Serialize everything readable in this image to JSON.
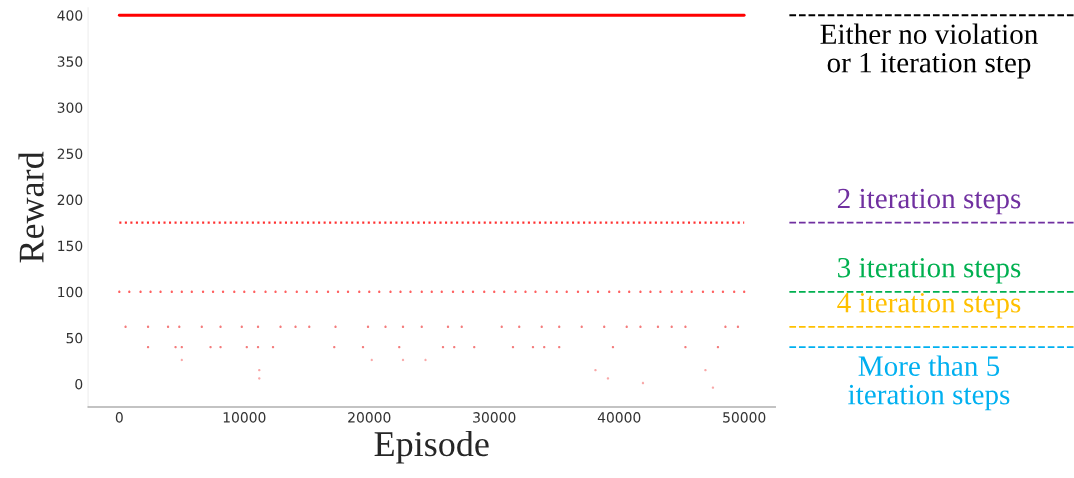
{
  "chart_data": {
    "type": "scatter",
    "xlabel": "Episode",
    "ylabel": "Reward",
    "xlim": [
      -2500,
      52500
    ],
    "ylim": [
      -25,
      408
    ],
    "xticks": [
      0,
      10000,
      20000,
      30000,
      40000,
      50000
    ],
    "yticks": [
      0,
      50,
      100,
      150,
      200,
      250,
      300,
      350,
      400
    ],
    "grid": false,
    "legend": false,
    "marker": "circle",
    "series": [
      {
        "type": "line",
        "marker": "none",
        "color": "#ff0000",
        "line_style": "solid",
        "x": [
          0,
          50000
        ],
        "values": [
          400,
          400
        ]
      },
      {
        "type": "line",
        "marker": "none",
        "color": "#ff3030",
        "line_style": "dotted",
        "x": [
          0,
          50000
        ],
        "values": [
          175,
          175
        ]
      },
      {
        "color": "#ff6060",
        "x": [
          0,
          800,
          1700,
          2500,
          3300,
          4200,
          5000,
          5800,
          6700,
          7500,
          8300,
          9200,
          10000,
          10800,
          11700,
          12500,
          13300,
          14200,
          15000,
          15800,
          16700,
          17500,
          18300,
          19200,
          20000,
          20800,
          21700,
          22500,
          23300,
          24200,
          25000,
          25800,
          26700,
          27500,
          28300,
          29200,
          30000,
          30800,
          31700,
          32500,
          33300,
          34200,
          35000,
          35800,
          36700,
          37500,
          38300,
          39200,
          40000,
          40800,
          41700,
          42500,
          43300,
          44200,
          45000,
          45800,
          46700,
          47500,
          48300,
          49200,
          50000
        ],
        "values": [
          100,
          100,
          100,
          100,
          100,
          100,
          100,
          100,
          100,
          100,
          100,
          100,
          100,
          100,
          100,
          100,
          100,
          100,
          100,
          100,
          100,
          100,
          100,
          100,
          100,
          100,
          100,
          100,
          100,
          100,
          100,
          100,
          100,
          100,
          100,
          100,
          100,
          100,
          100,
          100,
          100,
          100,
          100,
          100,
          100,
          100,
          100,
          100,
          100,
          100,
          100,
          100,
          100,
          100,
          100,
          100,
          100,
          100,
          100,
          100,
          100
        ]
      },
      {
        "color": "#f47c7c",
        "x": [
          500,
          2300,
          3900,
          4800,
          6600,
          8100,
          9800,
          11100,
          12900,
          14100,
          15200,
          17300,
          19900,
          21300,
          22700,
          24200,
          26300,
          27400,
          30600,
          32000,
          33800,
          35200,
          37000,
          38800,
          40600,
          41700,
          43100,
          44200,
          45300,
          48500,
          49500
        ],
        "values": [
          62,
          62,
          62,
          62,
          62,
          62,
          62,
          62,
          62,
          62,
          62,
          62,
          62,
          62,
          62,
          62,
          62,
          62,
          62,
          62,
          62,
          62,
          62,
          62,
          62,
          62,
          62,
          62,
          62,
          62,
          62
        ]
      },
      {
        "color": "#f47c7c",
        "x": [
          2300,
          4500,
          5000,
          7300,
          8100,
          10200,
          11100,
          12300,
          17200,
          19500,
          22400,
          25900,
          26800,
          28400,
          31500,
          33100,
          34000,
          35200,
          39500,
          45300,
          47900
        ],
        "values": [
          40,
          40,
          40,
          40,
          40,
          40,
          40,
          40,
          40,
          40,
          40,
          40,
          40,
          40,
          40,
          40,
          40,
          40,
          40,
          40,
          40
        ]
      },
      {
        "color": "#f8a8a8",
        "x": [
          5000,
          20200,
          22700,
          24500,
          11200,
          38100,
          46900,
          11200,
          39100,
          41900,
          47500
        ],
        "values": [
          26,
          26,
          26,
          26,
          15,
          15,
          15,
          6,
          6,
          1,
          -4
        ]
      }
    ],
    "ref_lines": [
      {
        "axis": "y",
        "value": 400,
        "label": "Either no violation\nor 1 iteration step",
        "color": "#000000",
        "line_style": "dashed"
      },
      {
        "axis": "y",
        "value": 175,
        "label": "2 iteration steps",
        "color": "#7030a0",
        "line_style": "dashed"
      },
      {
        "axis": "y",
        "value": 100,
        "label": "3 iteration steps",
        "color": "#00b050",
        "line_style": "dashed"
      },
      {
        "axis": "y",
        "value": 62,
        "label": "4 iteration steps",
        "color": "#ffc000",
        "line_style": "dashed"
      },
      {
        "axis": "y",
        "value": 40,
        "label": "More than 5\niteration steps",
        "color": "#00b0f0",
        "line_style": "dashed"
      }
    ]
  }
}
